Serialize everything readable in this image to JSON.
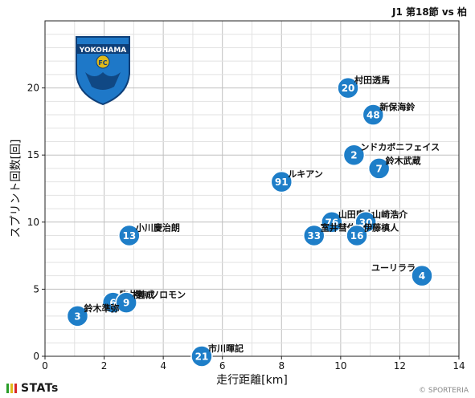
{
  "header": {
    "title": "J1 第18節 vs 柏"
  },
  "team_logo": {
    "text": "YOKOHAMA",
    "badge_text": "FC",
    "primary_color": "#1e78c8",
    "accent_color": "#e0ba1a"
  },
  "footer": {
    "brand": "STATs",
    "credit": "© SPORTERIA",
    "bar_colors": [
      "#2a9d2a",
      "#e0ba1a",
      "#d62828"
    ]
  },
  "chart_data": {
    "type": "scatter",
    "title": "",
    "xlabel": "走行距離[km]",
    "ylabel": "スプリント回数[回]",
    "xlim": [
      0,
      14
    ],
    "ylim": [
      0,
      25
    ],
    "xticks": [
      0,
      2,
      4,
      6,
      8,
      10,
      12,
      14
    ],
    "yticks": [
      0,
      5,
      10,
      15,
      20
    ],
    "grid": true,
    "marker_color": "#1e7ec8",
    "points": [
      {
        "number": "20",
        "name": "村田透馬",
        "x": 10.25,
        "y": 20
      },
      {
        "number": "48",
        "name": "新保海鈴",
        "x": 11.1,
        "y": 18
      },
      {
        "number": "2",
        "name": "ンドカボニフェイス",
        "x": 10.45,
        "y": 15
      },
      {
        "number": "7",
        "name": "鈴木武蔵",
        "x": 11.3,
        "y": 14
      },
      {
        "number": "91",
        "name": "ルキアン",
        "x": 8.0,
        "y": 13
      },
      {
        "number": "76",
        "name": "山田康太",
        "x": 9.7,
        "y": 10
      },
      {
        "number": "30",
        "name": "山崎浩介",
        "x": 10.85,
        "y": 10
      },
      {
        "number": "33",
        "name": "室井彗佑",
        "x": 9.1,
        "y": 9
      },
      {
        "number": "16",
        "name": "伊藤槙人",
        "x": 10.55,
        "y": 9
      },
      {
        "number": "13",
        "name": "小川慶治朗",
        "x": 2.85,
        "y": 9
      },
      {
        "number": "4",
        "name": "ユーリララ",
        "x": 12.75,
        "y": 6
      },
      {
        "number": "6",
        "name": "駒井善成",
        "x": 2.3,
        "y": 4
      },
      {
        "number": "9",
        "name": "櫻川ソロモン",
        "x": 2.75,
        "y": 4
      },
      {
        "number": "3",
        "name": "鈴木準弥",
        "x": 1.1,
        "y": 3
      },
      {
        "number": "21",
        "name": "市川暉記",
        "x": 5.3,
        "y": 0
      }
    ]
  }
}
